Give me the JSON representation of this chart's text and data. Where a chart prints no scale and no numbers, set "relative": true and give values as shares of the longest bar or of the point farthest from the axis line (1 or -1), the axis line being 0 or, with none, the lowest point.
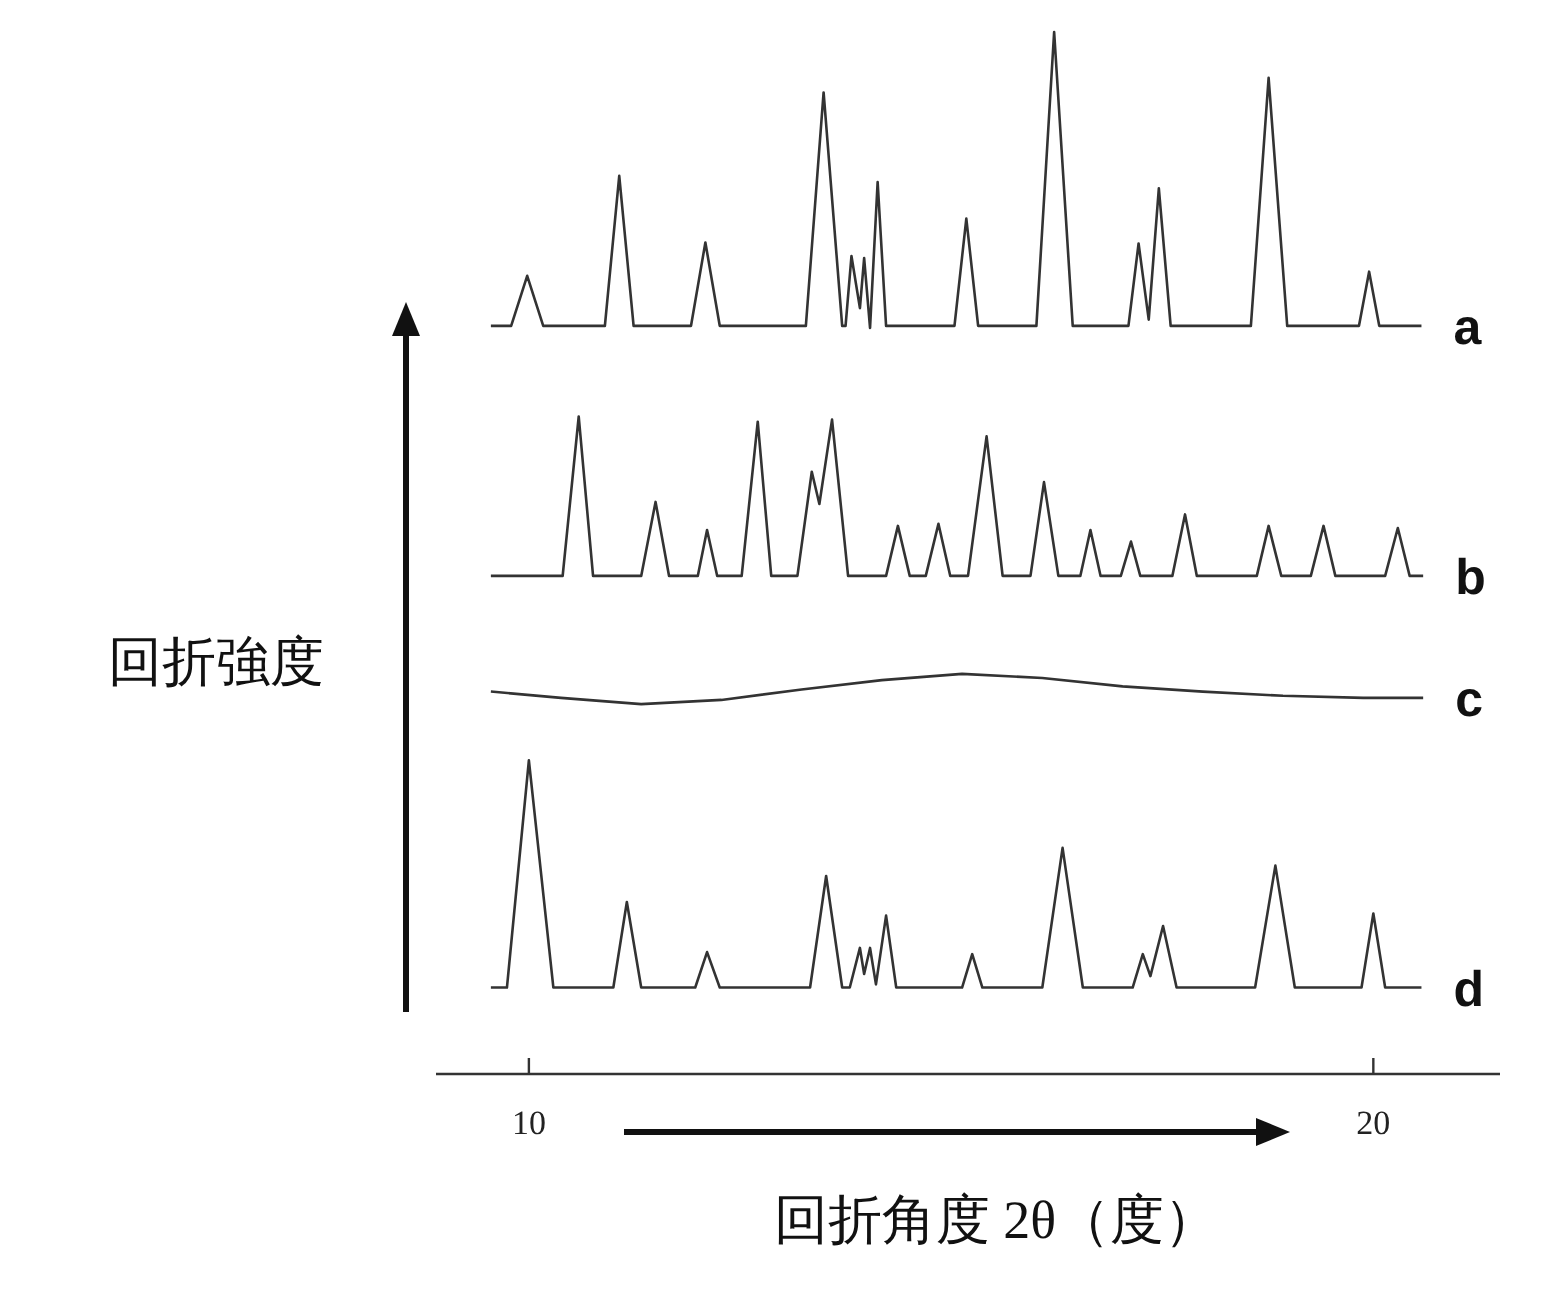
{
  "chart_data": {
    "type": "line",
    "relative": true,
    "xlabel": "回折角度 2θ（度）",
    "ylabel": "回折強度",
    "xlim": [
      8.9,
      21.5
    ],
    "xticks": [
      10,
      20
    ],
    "tick_labels": "x",
    "legend": false,
    "grid": false,
    "marker": "none",
    "line_style": "solid",
    "series": [
      {
        "name": "a",
        "color": "#333333",
        "x": [
          9.55,
          9.79,
          9.98,
          10.17,
          10.9,
          11.07,
          11.24,
          11.92,
          12.09,
          12.26,
          13.28,
          13.49,
          13.71,
          13.75,
          13.82,
          13.92,
          13.97,
          14.04,
          14.13,
          14.23,
          15.04,
          15.18,
          15.32,
          16.01,
          16.22,
          16.44,
          17.1,
          17.22,
          17.34,
          17.46,
          17.6,
          18.55,
          18.76,
          18.98,
          19.83,
          19.95,
          20.07,
          20.57
        ],
        "values": [
          0.718,
          0.718,
          0.766,
          0.718,
          0.718,
          0.862,
          0.718,
          0.718,
          0.798,
          0.718,
          0.718,
          0.942,
          0.718,
          0.718,
          0.785,
          0.735,
          0.783,
          0.716,
          0.856,
          0.718,
          0.718,
          0.821,
          0.718,
          0.718,
          1,
          0.718,
          0.718,
          0.797,
          0.724,
          0.85,
          0.718,
          0.718,
          0.956,
          0.718,
          0.718,
          0.77,
          0.718,
          0.718
        ]
      },
      {
        "name": "b",
        "color": "#333333",
        "x": [
          9.55,
          10.4,
          10.59,
          10.76,
          11.33,
          11.5,
          11.66,
          12,
          12.11,
          12.23,
          12.52,
          12.71,
          12.87,
          13.18,
          13.35,
          13.44,
          13.59,
          13.78,
          14.23,
          14.37,
          14.51,
          14.7,
          14.85,
          14.99,
          15.2,
          15.42,
          15.61,
          15.94,
          16.1,
          16.27,
          16.53,
          16.65,
          16.77,
          17.01,
          17.13,
          17.24,
          17.62,
          17.77,
          17.91,
          18.62,
          18.76,
          18.91,
          19.26,
          19.41,
          19.55,
          20.14,
          20.29,
          20.43,
          20.59
        ],
        "values": [
          0.478,
          0.478,
          0.631,
          0.478,
          0.478,
          0.549,
          0.478,
          0.478,
          0.522,
          0.478,
          0.478,
          0.626,
          0.478,
          0.478,
          0.578,
          0.547,
          0.628,
          0.478,
          0.478,
          0.526,
          0.478,
          0.478,
          0.528,
          0.478,
          0.478,
          0.612,
          0.478,
          0.478,
          0.568,
          0.478,
          0.478,
          0.522,
          0.478,
          0.478,
          0.511,
          0.478,
          0.478,
          0.537,
          0.478,
          0.478,
          0.526,
          0.478,
          0.478,
          0.526,
          0.478,
          0.478,
          0.524,
          0.478,
          0.478
        ]
      },
      {
        "name": "c",
        "color": "#333333",
        "x": [
          9.55,
          10.38,
          11.33,
          12.28,
          13.23,
          14.18,
          15.13,
          16.08,
          17.03,
          17.98,
          18.93,
          19.88,
          20.59
        ],
        "values": [
          0.367,
          0.361,
          0.355,
          0.359,
          0.369,
          0.378,
          0.384,
          0.38,
          0.372,
          0.367,
          0.363,
          0.361,
          0.361
        ]
      },
      {
        "name": "d",
        "color": "#333333",
        "x": [
          9.55,
          9.74,
          10,
          10.29,
          11,
          11.16,
          11.33,
          11.97,
          12.11,
          12.26,
          13.33,
          13.52,
          13.71,
          13.8,
          13.92,
          13.97,
          14.04,
          14.11,
          14.23,
          14.35,
          15.13,
          15.25,
          15.37,
          16.08,
          16.32,
          16.56,
          17.15,
          17.27,
          17.36,
          17.51,
          17.67,
          18.6,
          18.84,
          19.07,
          19.86,
          20,
          20.14,
          20.57
        ],
        "values": [
          0.083,
          0.083,
          0.301,
          0.083,
          0.083,
          0.165,
          0.083,
          0.083,
          0.117,
          0.083,
          0.083,
          0.19,
          0.083,
          0.083,
          0.121,
          0.096,
          0.121,
          0.086,
          0.152,
          0.083,
          0.083,
          0.115,
          0.083,
          0.083,
          0.217,
          0.083,
          0.083,
          0.115,
          0.094,
          0.142,
          0.083,
          0.083,
          0.2,
          0.083,
          0.083,
          0.154,
          0.083,
          0.083
        ]
      }
    ]
  }
}
